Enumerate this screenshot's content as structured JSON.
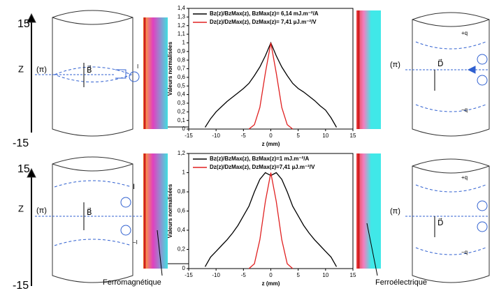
{
  "chart_data": [
    {
      "type": "line",
      "xlabel": "z (mm)",
      "ylabel": "Valeurs normalisées",
      "x": [
        -12,
        -11,
        -10,
        -9,
        -8,
        -7,
        -6,
        -5,
        -4,
        -3,
        -2,
        -1,
        0,
        1,
        2,
        3,
        4,
        5,
        6,
        7,
        8,
        9,
        10,
        11,
        12
      ],
      "series": [
        {
          "name": "Bz(z)/BzMax(z), BzMax(z)= 6,14 mJ.m⁻²/A",
          "color": "#000000",
          "values": [
            0.02,
            0.12,
            0.2,
            0.26,
            0.32,
            0.37,
            0.42,
            0.47,
            0.53,
            0.62,
            0.72,
            0.85,
            1.0,
            0.85,
            0.72,
            0.62,
            0.53,
            0.47,
            0.43,
            0.38,
            0.33,
            0.27,
            0.22,
            0.13,
            0.02
          ]
        },
        {
          "name": "Dz(z)/DzMax(z), DzMax(z)= 7,41 µJ.m⁻²/V",
          "color": "#e02020",
          "values": [
            null,
            null,
            null,
            null,
            null,
            null,
            null,
            null,
            0,
            0.05,
            0.25,
            0.65,
            1.0,
            0.65,
            0.25,
            0.05,
            0,
            null,
            null,
            null,
            null,
            null,
            null,
            null,
            null
          ]
        }
      ],
      "xlim": [
        -15,
        15
      ],
      "xticks": [
        -15,
        -10,
        -5,
        0,
        5,
        10,
        15
      ],
      "ylim": [
        0,
        1.4
      ],
      "yticks": [
        0,
        {
          "value": 0.1,
          "label": "0,1"
        },
        {
          "value": 0.2,
          "label": "0,2"
        },
        {
          "value": 0.3,
          "label": "0,3"
        },
        {
          "value": 0.4,
          "label": "0,4"
        },
        {
          "value": 0.5,
          "label": "0,5"
        },
        {
          "value": 0.6,
          "label": "0,6"
        },
        {
          "value": 0.7,
          "label": "0,7"
        },
        {
          "value": 0.8,
          "label": "0,8"
        },
        {
          "value": 0.9,
          "label": "0,9"
        },
        1,
        {
          "value": 1.1,
          "label": "1,1"
        },
        {
          "value": 1.2,
          "label": "1,2"
        },
        {
          "value": 1.3,
          "label": "1,3"
        },
        {
          "value": 1.4,
          "label": "1,4"
        }
      ],
      "legend": "upper left"
    },
    {
      "type": "line",
      "xlabel": "z (mm)",
      "ylabel": "Valeurs normalisées",
      "x": [
        -12,
        -11,
        -10,
        -9,
        -8,
        -7,
        -6,
        -5,
        -4,
        -3,
        -2,
        -1,
        0,
        1,
        2,
        3,
        4,
        5,
        6,
        7,
        8,
        9,
        10,
        11,
        12
      ],
      "series": [
        {
          "name": "Bz(z)/BzMax(z), BzMax(z)=1 mJ.m⁻²/A",
          "color": "#000000",
          "values": [
            0.02,
            0.12,
            0.18,
            0.24,
            0.3,
            0.37,
            0.45,
            0.55,
            0.65,
            0.8,
            0.93,
            1.0,
            0.97,
            1.0,
            0.93,
            0.8,
            0.65,
            0.55,
            0.45,
            0.37,
            0.3,
            0.24,
            0.18,
            0.12,
            0.02
          ]
        },
        {
          "name": "Dz(z)/DzMax(z), DzMax(z)=7,41 µJ.m⁻²/V",
          "color": "#e02020",
          "values": [
            null,
            null,
            null,
            null,
            null,
            null,
            null,
            null,
            0,
            0.05,
            0.3,
            0.7,
            1.0,
            0.7,
            0.3,
            0.05,
            0,
            null,
            null,
            null,
            null,
            null,
            null,
            null,
            null
          ]
        }
      ],
      "xlim": [
        -15,
        15
      ],
      "xticks": [
        -15,
        -10,
        -5,
        0,
        5,
        10,
        15
      ],
      "ylim": [
        0,
        1.2
      ],
      "yticks": [
        0,
        {
          "value": 0.2,
          "label": "0,2"
        },
        {
          "value": 0.4,
          "label": "0,4"
        },
        {
          "value": 0.6,
          "label": "0,6"
        },
        {
          "value": 0.8,
          "label": "0,8"
        },
        1,
        {
          "value": 1.2,
          "label": "1,2"
        }
      ],
      "legend": "upper left"
    }
  ],
  "diagram": {
    "top_axis": [
      "15",
      "Z",
      "-15"
    ],
    "bottom_axis": [
      "15",
      "Z",
      "-15"
    ],
    "pi": [
      "(π)",
      "(π)",
      "(π)",
      "(π)"
    ],
    "b_vector": [
      "B⃗",
      "B⃗"
    ],
    "d_vector": [
      "D⃗",
      "D⃗"
    ],
    "charges": [
      "+q",
      "−q",
      "+q",
      "−q"
    ],
    "currents": [
      "I",
      "I",
      "−I"
    ],
    "materials": [
      "Ferromagnétique",
      "Ferroélectrique"
    ]
  }
}
